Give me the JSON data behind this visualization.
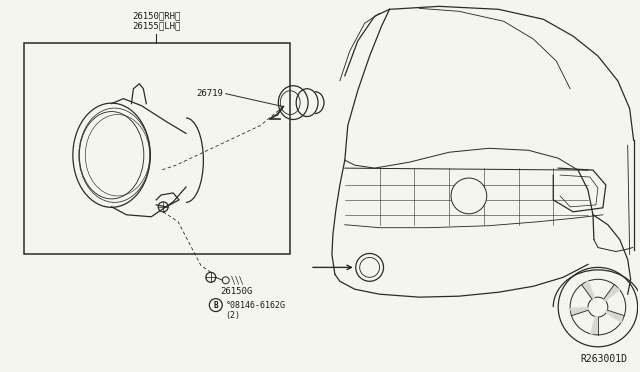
{
  "bg_color": "#f5f5f0",
  "line_color": "#2a2a2a",
  "text_color": "#1a1a1a",
  "fig_width": 6.4,
  "fig_height": 3.72,
  "dpi": 100,
  "label_26150_RH": "26150〈RH〉",
  "label_26155_LH": "26155〈LH〉",
  "label_26719": "26719",
  "label_26150G": "26150G",
  "label_bolt": "°08146-6162G",
  "label_qty": "(2)",
  "label_ref": "R263001D"
}
